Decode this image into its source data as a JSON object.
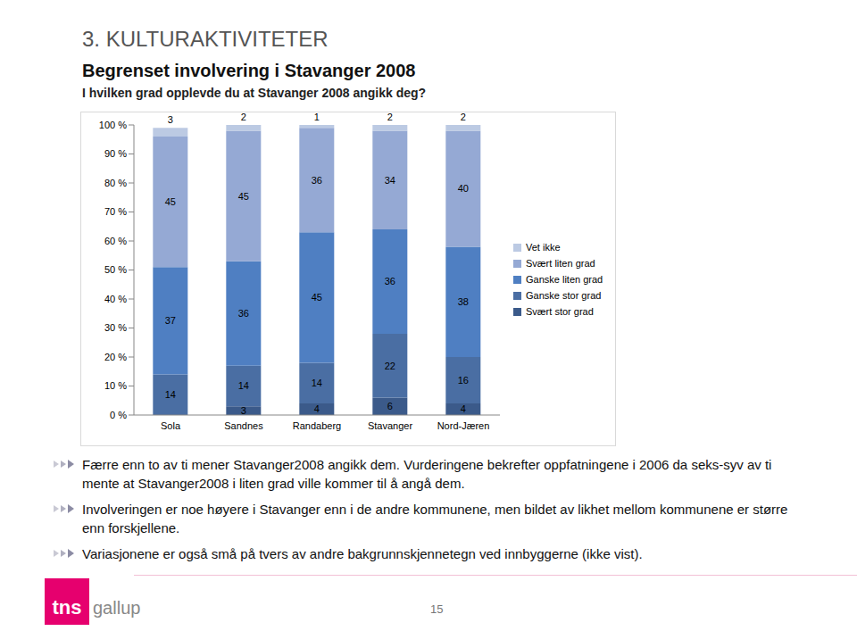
{
  "heading": "3. KULTURAKTIVITETER",
  "title": "Begrenset involvering i Stavanger 2008",
  "subtitle": "I hvilken grad opplevde du at Stavanger 2008 angikk deg?",
  "chart_data": {
    "type": "bar",
    "stacked": true,
    "data_labels": true,
    "grid": false,
    "legend": "right",
    "categories": [
      "Sola",
      "Sandnes",
      "Randaberg",
      "Stavanger",
      "Nord-Jæren"
    ],
    "ylim": [
      0,
      100
    ],
    "yticks": [
      {
        "value": 0,
        "label": "0 %"
      },
      {
        "value": 10,
        "label": "10 %"
      },
      {
        "value": 20,
        "label": "20 %"
      },
      {
        "value": 30,
        "label": "30 %"
      },
      {
        "value": 40,
        "label": "40 %"
      },
      {
        "value": 50,
        "label": "50 %"
      },
      {
        "value": 60,
        "label": "60 %"
      },
      {
        "value": 70,
        "label": "70 %"
      },
      {
        "value": 80,
        "label": "80 %"
      },
      {
        "value": 90,
        "label": "90 %"
      },
      {
        "value": 100,
        "label": "100 %"
      }
    ],
    "series": [
      {
        "name": "Svært stor grad",
        "color": "#3b5a8a",
        "values": [
          0,
          3,
          4,
          6,
          4
        ]
      },
      {
        "name": "Ganske stor grad",
        "color": "#4a6ea3",
        "values": [
          14,
          14,
          14,
          22,
          16
        ]
      },
      {
        "name": "Ganske liten grad",
        "color": "#4f7fc2",
        "values": [
          37,
          36,
          45,
          36,
          38
        ]
      },
      {
        "name": "Svært liten grad",
        "color": "#95a9d4",
        "values": [
          45,
          45,
          36,
          34,
          40
        ]
      },
      {
        "name": "Vet ikke",
        "color": "#bccae3",
        "values": [
          3,
          2,
          1,
          2,
          2
        ]
      }
    ]
  },
  "bullets": [
    "Færre enn to av ti mener Stavanger2008 angikk dem. Vurderingene bekrefter oppfatningene i 2006 da seks-syv av ti mente at Stavanger2008 i liten grad ville kommer til å angå dem.",
    "Involveringen er noe høyere i Stavanger enn i de andre kommunene, men bildet av likhet mellom kommunene er større enn forskjellene.",
    "Variasjonene er også små på tvers av andre bakgrunnskjennetegn ved innbyggerne (ikke vist)."
  ],
  "logo": {
    "brand": "tns",
    "product": "gallup"
  },
  "page_number": 15
}
